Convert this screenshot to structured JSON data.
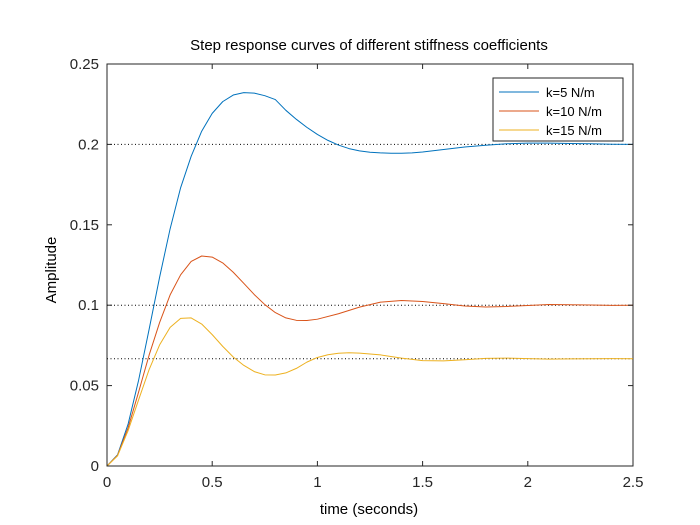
{
  "chart_data": {
    "type": "line",
    "title": "Step response curves of different stiffness coefficients",
    "xlabel": "time (seconds)",
    "ylabel": "Amplitude",
    "xlim": [
      0,
      2.5
    ],
    "ylim": [
      0,
      0.25
    ],
    "xticks": [
      0,
      0.5,
      1,
      1.5,
      2,
      2.5
    ],
    "xtick_labels": [
      "0",
      "0.5",
      "1",
      "1.5",
      "2",
      "2.5"
    ],
    "yticks": [
      0,
      0.05,
      0.1,
      0.15,
      0.2,
      0.25
    ],
    "ytick_labels": [
      "0",
      "0.05",
      "0.1",
      "0.15",
      "0.2",
      "0.25"
    ],
    "grid": false,
    "legend_position": "top-right",
    "reference_lines": [
      {
        "y": 0.2,
        "style": "dotted",
        "color": "#000000"
      },
      {
        "y": 0.1,
        "style": "dotted",
        "color": "#000000"
      },
      {
        "y": 0.0667,
        "style": "dotted",
        "color": "#000000"
      }
    ],
    "series": [
      {
        "name": "k=5 N/m",
        "color": "#0072BD",
        "x": [
          0,
          0.05,
          0.1,
          0.15,
          0.2,
          0.25,
          0.3,
          0.35,
          0.4,
          0.45,
          0.5,
          0.55,
          0.6,
          0.65,
          0.7,
          0.75,
          0.8,
          0.85,
          0.9,
          0.95,
          1.0,
          1.05,
          1.1,
          1.15,
          1.2,
          1.25,
          1.3,
          1.35,
          1.4,
          1.45,
          1.5,
          1.6,
          1.7,
          1.8,
          1.9,
          2.0,
          2.1,
          2.2,
          2.3,
          2.4,
          2.5
        ],
        "y": [
          0,
          0.0069,
          0.0259,
          0.0532,
          0.0849,
          0.1174,
          0.1475,
          0.1731,
          0.1926,
          0.2082,
          0.2193,
          0.2266,
          0.2307,
          0.2322,
          0.2319,
          0.2303,
          0.2279,
          0.2212,
          0.2156,
          0.2106,
          0.2062,
          0.2025,
          0.1996,
          0.1974,
          0.196,
          0.1951,
          0.1947,
          0.1945,
          0.1945,
          0.1947,
          0.1953,
          0.1968,
          0.1984,
          0.1995,
          0.2004,
          0.2008,
          0.2008,
          0.2006,
          0.2004,
          0.2001,
          0.2
        ]
      },
      {
        "name": "k=10 N/m",
        "color": "#D95319",
        "x": [
          0,
          0.05,
          0.1,
          0.15,
          0.2,
          0.25,
          0.3,
          0.35,
          0.4,
          0.45,
          0.5,
          0.55,
          0.6,
          0.65,
          0.7,
          0.75,
          0.8,
          0.85,
          0.9,
          0.95,
          1.0,
          1.1,
          1.2,
          1.3,
          1.4,
          1.5,
          1.6,
          1.7,
          1.8,
          1.9,
          2.0,
          2.1,
          2.2,
          2.3,
          2.4,
          2.5
        ],
        "y": [
          0,
          0.0066,
          0.0236,
          0.0459,
          0.0689,
          0.0892,
          0.1064,
          0.1189,
          0.1272,
          0.1306,
          0.1299,
          0.1263,
          0.1205,
          0.1136,
          0.1066,
          0.1004,
          0.0954,
          0.0921,
          0.0906,
          0.0905,
          0.0913,
          0.0947,
          0.0988,
          0.1019,
          0.1029,
          0.1023,
          0.101,
          0.0995,
          0.0989,
          0.0992,
          0.0998,
          0.1004,
          0.1003,
          0.1001,
          0.0999,
          0.1
        ]
      },
      {
        "name": "k=15 N/m",
        "color": "#EDB120",
        "x": [
          0,
          0.05,
          0.1,
          0.15,
          0.2,
          0.25,
          0.3,
          0.35,
          0.4,
          0.45,
          0.5,
          0.55,
          0.6,
          0.65,
          0.7,
          0.75,
          0.8,
          0.85,
          0.9,
          0.95,
          1.0,
          1.05,
          1.1,
          1.15,
          1.2,
          1.3,
          1.4,
          1.5,
          1.6,
          1.7,
          1.8,
          1.9,
          2.0,
          2.1,
          2.2,
          2.3,
          2.4,
          2.5
        ],
        "y": [
          0,
          0.0063,
          0.0219,
          0.0411,
          0.0599,
          0.0753,
          0.0862,
          0.0918,
          0.0921,
          0.0883,
          0.0817,
          0.0744,
          0.0678,
          0.0626,
          0.0587,
          0.0567,
          0.0566,
          0.0579,
          0.0607,
          0.0646,
          0.0675,
          0.0692,
          0.0701,
          0.0704,
          0.0702,
          0.0691,
          0.0671,
          0.0655,
          0.0654,
          0.0661,
          0.0669,
          0.0671,
          0.0668,
          0.0665,
          0.0666,
          0.0667,
          0.0668,
          0.0667
        ]
      }
    ]
  }
}
